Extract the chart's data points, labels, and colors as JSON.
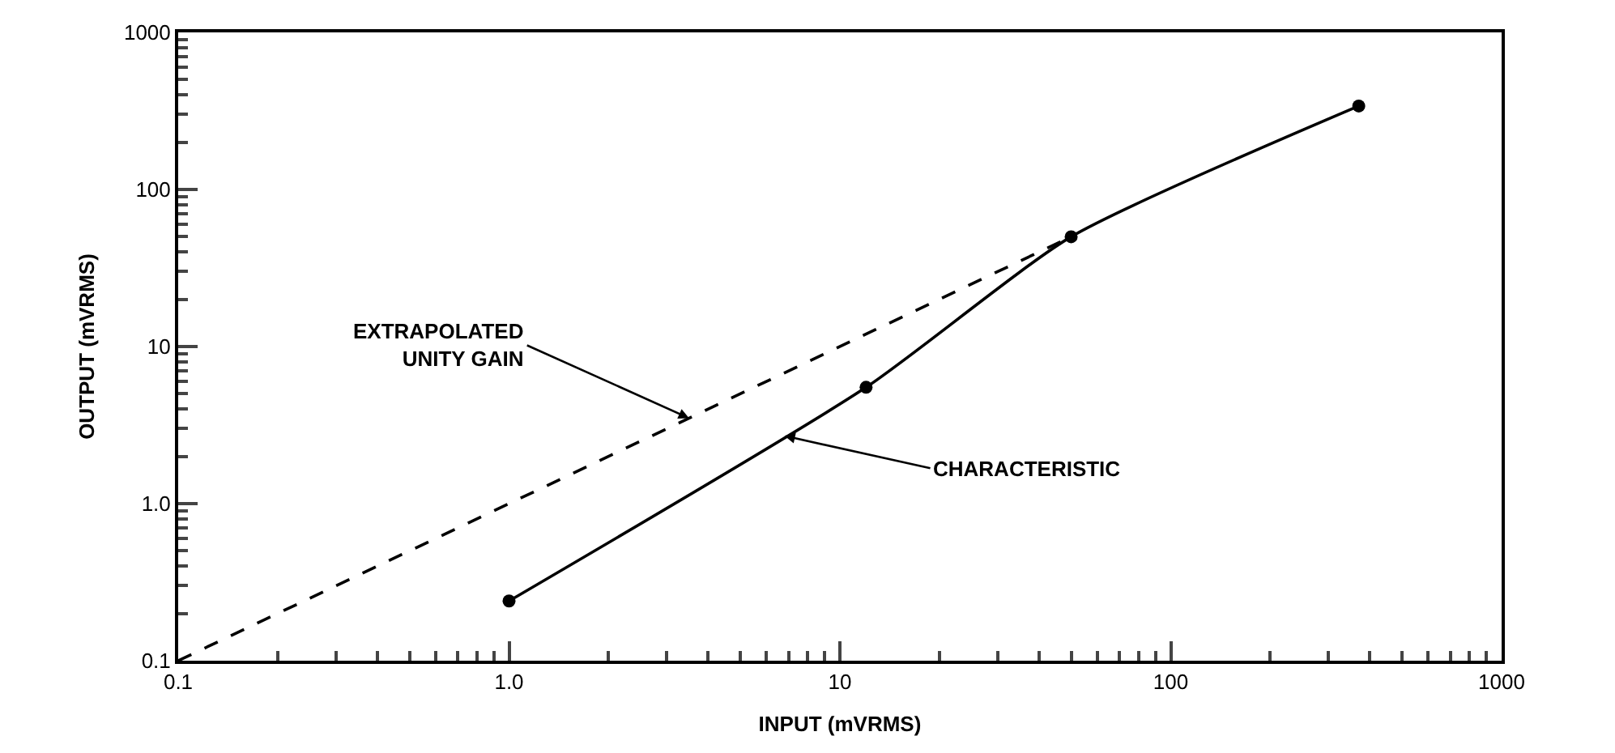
{
  "chart_data": {
    "type": "line",
    "xlabel": "INPUT (mVRMS)",
    "ylabel": "OUTPUT (mVRMS)",
    "log": "xy",
    "series": [
      {
        "color": "#000000",
        "x": [
          1.0,
          12,
          50,
          370
        ],
        "values": [
          0.24,
          5.5,
          50,
          340
        ],
        "marker": "circle",
        "line_style": "solid"
      },
      {
        "color": "#000000",
        "x": [
          0.1,
          50
        ],
        "values": [
          0.1,
          50
        ],
        "marker": "none",
        "line_style": "dashed"
      }
    ],
    "annotations": [
      {
        "text": "EXTRAPOLATED\nUNITY GAIN",
        "x": 3.5,
        "y": 3.5
      },
      {
        "text": "CHARACTERISTIC",
        "x": 6.8,
        "y": 2.7
      }
    ],
    "xlim": [
      0.1,
      1000
    ],
    "ylim": [
      0.1,
      1000
    ],
    "xticks": [
      0.1,
      {
        "value": 1,
        "label": "1.0"
      },
      10,
      100,
      1000
    ],
    "yticks": [
      0.1,
      {
        "value": 1,
        "label": "1.0"
      },
      10,
      100,
      1000
    ]
  }
}
